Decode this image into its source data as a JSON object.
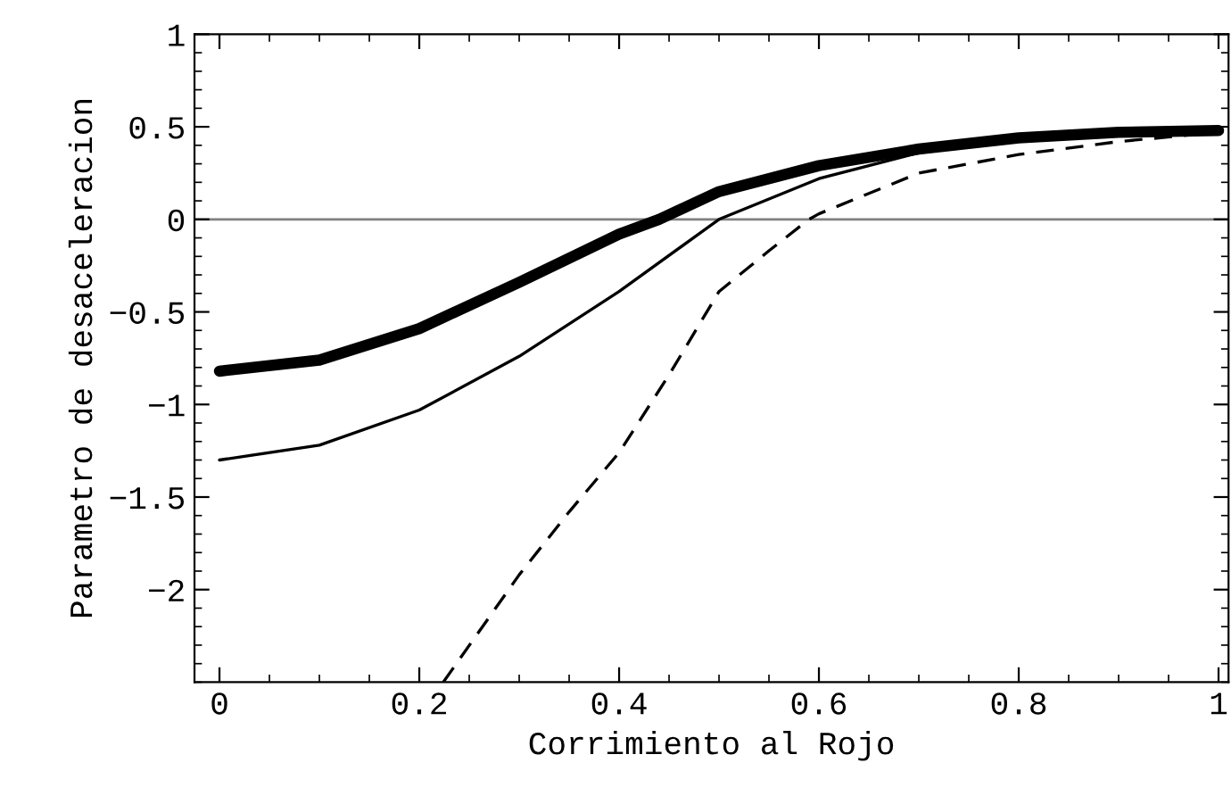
{
  "chart_data": {
    "type": "line",
    "xlabel": "Corrimiento al Rojo",
    "ylabel": "Parametro de desaceleracion",
    "xlim": [
      -0.025,
      1.01
    ],
    "ylim": [
      -2.5,
      1
    ],
    "xticks": [
      0,
      0.2,
      0.4,
      0.6,
      0.8,
      1
    ],
    "yticks": [
      -2,
      -1.5,
      -1,
      -0.5,
      0,
      0.5,
      1
    ],
    "grid": false,
    "legend": false,
    "marker": "none",
    "ref_lines": [
      {
        "axis": "y",
        "value": 0,
        "color": "#808080",
        "line_style": "solid"
      }
    ],
    "series": [
      {
        "color": "#000000",
        "line_style": "solid",
        "x": [
          0,
          0.1,
          0.2,
          0.3,
          0.4,
          0.44,
          0.5,
          0.6,
          0.7,
          0.8,
          0.9,
          1
        ],
        "values": [
          -0.82,
          -0.76,
          -0.59,
          -0.34,
          -0.08,
          0,
          0.15,
          0.29,
          0.38,
          0.44,
          0.47,
          0.48
        ]
      },
      {
        "color": "#000000",
        "line_style": "solid",
        "x": [
          0,
          0.1,
          0.2,
          0.3,
          0.4,
          0.5,
          0.6,
          0.7,
          0.8,
          0.9,
          1
        ],
        "values": [
          -1.3,
          -1.22,
          -1.03,
          -0.74,
          -0.39,
          0,
          0.22,
          0.36,
          0.43,
          0.46,
          0.48
        ]
      },
      {
        "color": "#000000",
        "line_style": "dashed",
        "x": [
          0.224,
          0.3,
          0.35,
          0.4,
          0.45,
          0.5,
          0.55,
          0.59,
          0.6,
          0.7,
          0.8,
          0.9,
          1
        ],
        "values": [
          -2.5,
          -1.92,
          -1.58,
          -1.26,
          -0.84,
          -0.39,
          -0.17,
          0,
          0.03,
          0.25,
          0.35,
          0.42,
          0.47
        ]
      }
    ]
  }
}
